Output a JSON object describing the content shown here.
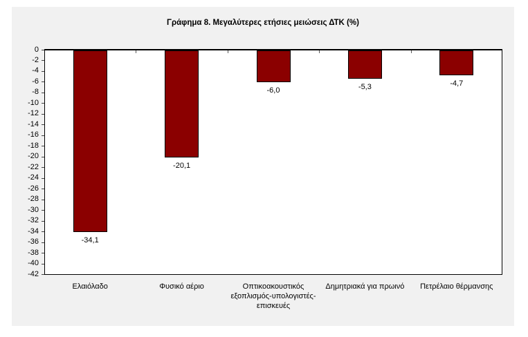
{
  "page": {
    "background": "#ffffff"
  },
  "chart": {
    "background": "#f1f1f1",
    "plot_background": "#ffffff",
    "axis_color": "#000000",
    "tick_color": "#404040"
  },
  "chart_data": {
    "type": "bar",
    "title": "Γράφημα 8. Μεγαλύτερες ετήσιες μειώσεις ΔΤΚ (%)",
    "categories": [
      "Ελαιόλαδο",
      "Φυσικό αέριο",
      "Οπτικοακουστικός εξοπλισμός-υπολογιστές-επισκευές",
      "Δημητριακά για πρωινό",
      "Πετρέλαιο θέρμανσης"
    ],
    "values": [
      -34.1,
      -20.1,
      -6.0,
      -5.3,
      -4.7
    ],
    "value_labels": [
      "-34,1",
      "-20,1",
      "-6,0",
      "-5,3",
      "-4,7"
    ],
    "bar_color": "#8B0000",
    "bar_border_color": "#000000",
    "xlabel": "",
    "ylabel": "",
    "ylim": [
      -42,
      0
    ],
    "ytick_step": 2,
    "ytick_labels": [
      "0",
      "-2",
      "-4",
      "-6",
      "-8",
      "-10",
      "-12",
      "-14",
      "-16",
      "-18",
      "-20",
      "-22",
      "-24",
      "-26",
      "-28",
      "-30",
      "-32",
      "-34",
      "-36",
      "-38",
      "-40",
      "-42"
    ],
    "grid": false,
    "legend": false
  }
}
